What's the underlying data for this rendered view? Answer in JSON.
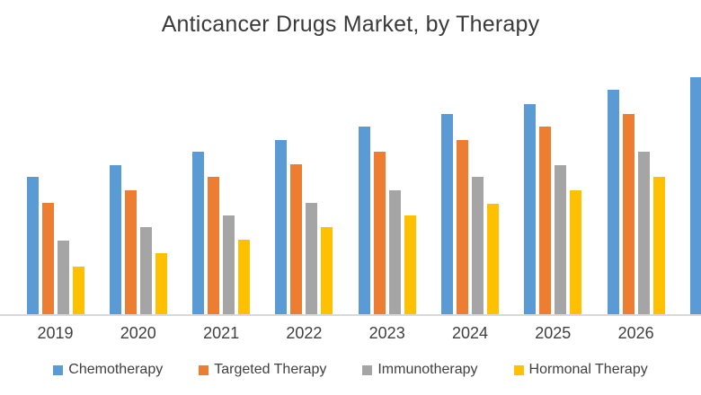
{
  "chart": {
    "title": "Anticancer Drugs Market, by Therapy"
  },
  "chart_data": {
    "type": "bar",
    "title": "Anticancer Drugs Market, by Therapy",
    "categories": [
      "2019",
      "2020",
      "2021",
      "2022",
      "2023",
      "2024",
      "2025",
      "2026"
    ],
    "series": [
      {
        "name": "Chemotherapy",
        "color": "#5B9BD5",
        "values": [
          153,
          166,
          181,
          194,
          209,
          223,
          234,
          250
        ]
      },
      {
        "name": "Targeted Therapy",
        "color": "#ED7D31",
        "values": [
          124,
          138,
          153,
          167,
          181,
          194,
          209,
          223
        ]
      },
      {
        "name": "Immunotherapy",
        "color": "#A5A5A5",
        "values": [
          82,
          97,
          110,
          124,
          138,
          153,
          166,
          181
        ]
      },
      {
        "name": "Hormonal Therapy",
        "color": "#FFC000",
        "values": [
          53,
          68,
          83,
          97,
          110,
          123,
          138,
          153
        ]
      }
    ],
    "clipped_partial_group": {
      "series": "Chemotherapy",
      "value": 264,
      "note": "blue bar of a following group is cut off at the right edge; its category label is not visible"
    },
    "xlabel": "",
    "ylabel": "",
    "ylim": [
      0,
      270
    ],
    "value_unit": "relative (pixel-proportional, no y-axis labels visible)",
    "grid": false,
    "y_axis_labels_visible": false,
    "legend_position": "bottom",
    "colors": {
      "text": "#404040",
      "title_text": "#3a3a3a",
      "axis_line": "#d9d9d9",
      "background": "#ffffff"
    }
  }
}
